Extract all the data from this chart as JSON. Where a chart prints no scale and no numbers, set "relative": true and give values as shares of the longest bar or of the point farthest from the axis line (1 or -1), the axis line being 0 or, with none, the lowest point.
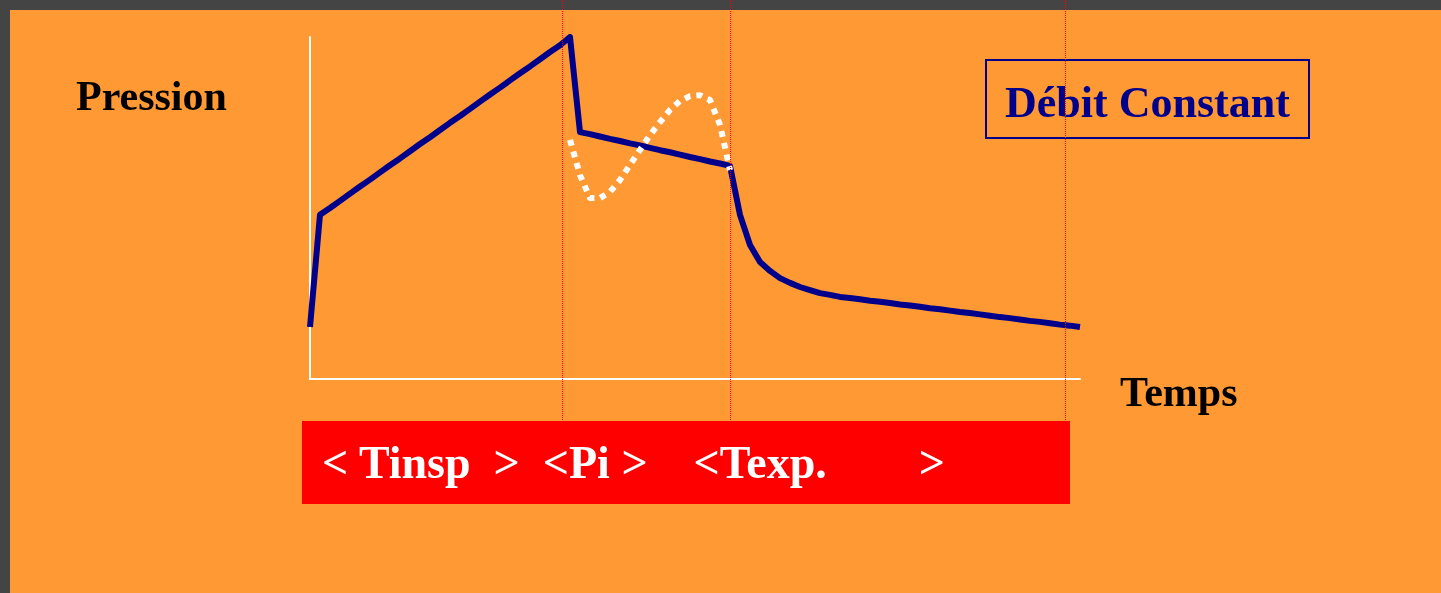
{
  "chart_data": {
    "type": "line",
    "title": "Débit Constant",
    "xlabel": "Temps",
    "ylabel": "Pression",
    "relative": true,
    "categories": [
      null,
      null,
      null,
      null,
      null,
      null,
      null,
      null,
      null,
      null,
      null,
      null,
      null,
      null,
      null,
      null,
      null,
      null,
      null,
      null,
      null,
      null,
      null,
      null,
      null,
      null,
      null,
      null,
      null,
      null,
      null,
      null,
      null,
      null,
      null,
      null,
      null,
      null,
      null,
      null,
      null,
      null,
      null,
      null,
      null,
      null,
      null,
      null,
      null,
      null,
      null,
      null,
      null,
      null,
      null,
      null,
      null,
      null,
      null,
      null,
      null,
      null,
      null,
      null,
      null,
      null,
      null,
      null,
      null,
      null,
      null,
      null,
      null,
      null,
      null,
      null,
      null,
      null
    ],
    "series": [
      {
        "color": "#00008b",
        "line_style": "solid",
        "values": [
          0.152,
          0.48,
          0.5,
          0.521,
          0.542,
          0.563,
          0.583,
          0.604,
          0.625,
          0.645,
          0.666,
          0.687,
          0.707,
          0.728,
          0.749,
          0.769,
          0.79,
          0.811,
          0.832,
          0.852,
          0.873,
          0.894,
          0.914,
          0.935,
          0.956,
          0.976,
          1.0,
          0.722,
          0.716,
          0.709,
          0.702,
          0.696,
          0.689,
          0.683,
          0.676,
          0.669,
          0.663,
          0.656,
          0.649,
          0.643,
          0.636,
          0.63,
          0.623,
          0.48,
          0.392,
          0.342,
          0.316,
          0.295,
          0.281,
          0.269,
          0.26,
          0.251,
          0.246,
          0.24,
          0.237,
          0.233,
          0.229,
          0.226,
          0.222,
          0.218,
          0.215,
          0.211,
          0.207,
          0.204,
          0.2,
          0.196,
          0.193,
          0.189,
          0.185,
          0.181,
          0.178,
          0.174,
          0.17,
          0.167,
          0.163,
          0.159,
          0.156,
          0.152
        ]
      },
      {
        "color": "#ffffff",
        "line_style": "dotted",
        "values": [
          null,
          null,
          null,
          null,
          null,
          null,
          null,
          null,
          null,
          null,
          null,
          null,
          null,
          null,
          null,
          null,
          null,
          null,
          null,
          null,
          null,
          null,
          null,
          null,
          null,
          null,
          0.699,
          0.596,
          0.529,
          0.529,
          0.547,
          0.582,
          0.626,
          0.67,
          0.713,
          0.751,
          0.787,
          0.813,
          0.827,
          0.83,
          0.816,
          0.743,
          0.611,
          null,
          null,
          null,
          null,
          null,
          null,
          null,
          null,
          null,
          null,
          null,
          null,
          null,
          null,
          null,
          null,
          null,
          null,
          null,
          null,
          null,
          null,
          null,
          null,
          null,
          null,
          null,
          null,
          null,
          null,
          null,
          null,
          null,
          null,
          null
        ]
      }
    ],
    "annotations": [
      "< Tinsp  >  <Pi >    <Texp.        >"
    ],
    "marker": "none"
  }
}
